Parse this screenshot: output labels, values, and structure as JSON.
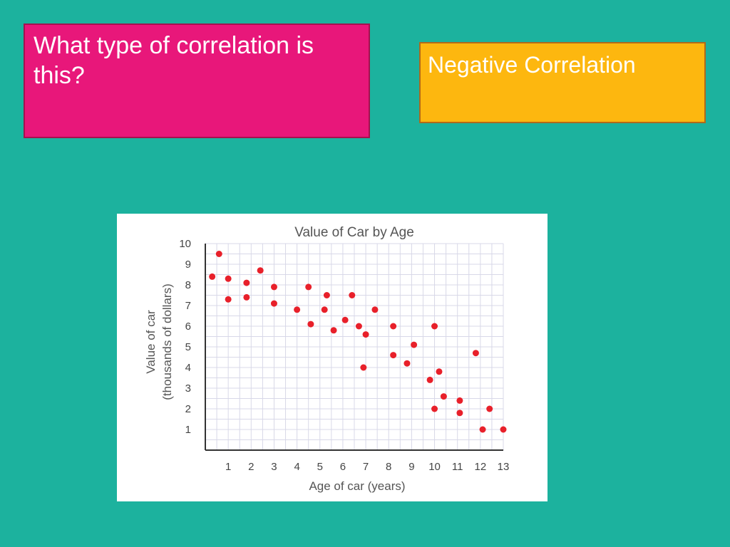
{
  "slide": {
    "question": "What type of correlation is this?",
    "answer": "Negative Correlation"
  },
  "colors": {
    "background": "#1cb29e",
    "question_box": "#e8177a",
    "answer_box": "#fdb70f",
    "points": "#e8202a",
    "grid": "#d8d8e8"
  },
  "chart_data": {
    "type": "scatter",
    "title": "Value of Car by Age",
    "xlabel": "Age of car (years)",
    "ylabel": "Value of car",
    "ylabel_sub": "(thousands of dollars)",
    "xlim": [
      0,
      13
    ],
    "ylim": [
      0,
      10
    ],
    "x_ticks": [
      1,
      2,
      3,
      4,
      5,
      6,
      7,
      8,
      9,
      10,
      11,
      12,
      13
    ],
    "y_ticks": [
      1,
      2,
      3,
      4,
      5,
      6,
      7,
      8,
      9,
      10
    ],
    "grid": true,
    "legend": "none",
    "points": [
      {
        "x": 0.3,
        "y": 8.4
      },
      {
        "x": 0.6,
        "y": 9.5
      },
      {
        "x": 1.0,
        "y": 8.3
      },
      {
        "x": 1.0,
        "y": 7.3
      },
      {
        "x": 1.8,
        "y": 8.1
      },
      {
        "x": 1.8,
        "y": 7.4
      },
      {
        "x": 2.4,
        "y": 8.7
      },
      {
        "x": 3.0,
        "y": 7.9
      },
      {
        "x": 3.0,
        "y": 7.1
      },
      {
        "x": 4.0,
        "y": 6.8
      },
      {
        "x": 4.5,
        "y": 7.9
      },
      {
        "x": 4.6,
        "y": 6.1
      },
      {
        "x": 5.2,
        "y": 6.8
      },
      {
        "x": 5.3,
        "y": 7.5
      },
      {
        "x": 5.6,
        "y": 5.8
      },
      {
        "x": 6.1,
        "y": 6.3
      },
      {
        "x": 6.4,
        "y": 7.5
      },
      {
        "x": 6.7,
        "y": 6.0
      },
      {
        "x": 7.0,
        "y": 5.6
      },
      {
        "x": 7.4,
        "y": 6.8
      },
      {
        "x": 6.9,
        "y": 4.0
      },
      {
        "x": 8.2,
        "y": 6.0
      },
      {
        "x": 8.2,
        "y": 4.6
      },
      {
        "x": 8.8,
        "y": 4.2
      },
      {
        "x": 9.1,
        "y": 5.1
      },
      {
        "x": 9.8,
        "y": 3.4
      },
      {
        "x": 10.0,
        "y": 6.0
      },
      {
        "x": 10.2,
        "y": 3.8
      },
      {
        "x": 10.4,
        "y": 2.6
      },
      {
        "x": 10.0,
        "y": 2.0
      },
      {
        "x": 11.1,
        "y": 2.4
      },
      {
        "x": 11.1,
        "y": 1.8
      },
      {
        "x": 11.8,
        "y": 4.7
      },
      {
        "x": 12.1,
        "y": 1.0
      },
      {
        "x": 12.4,
        "y": 2.0
      },
      {
        "x": 13.0,
        "y": 1.0
      }
    ]
  }
}
